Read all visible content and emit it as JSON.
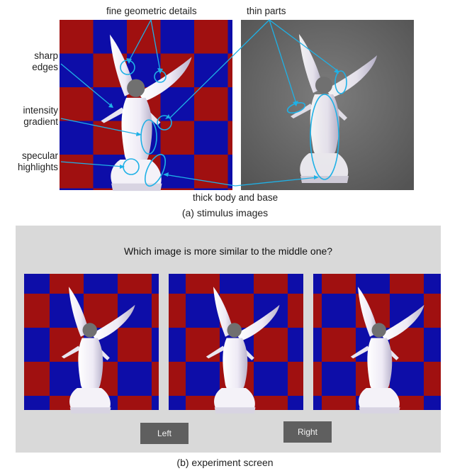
{
  "figure": {
    "annotations": {
      "fine_geometric_details": "fine geometric details",
      "thin_parts": "thin parts",
      "sharp_edges": [
        "sharp",
        "edges"
      ],
      "intensity_gradient": [
        "intensity",
        "gradient"
      ],
      "specular_highlights": [
        "specular",
        "highlights"
      ],
      "thick_body_and_base": "thick body and base"
    },
    "caption_a": "(a) stimulus images",
    "caption_b": "(b) experiment screen",
    "experiment": {
      "question": "Which image is more similar to the middle one?",
      "left_button": "Left",
      "right_button": "Right"
    },
    "colors": {
      "checker_red": "#a01010",
      "checker_blue": "#0d0da8",
      "annotation_cyan": "#1fb1e6",
      "background_gray": "#6d6d6d",
      "panel_gray": "#d9d9d9",
      "button_gray": "#5f5f5f"
    }
  }
}
